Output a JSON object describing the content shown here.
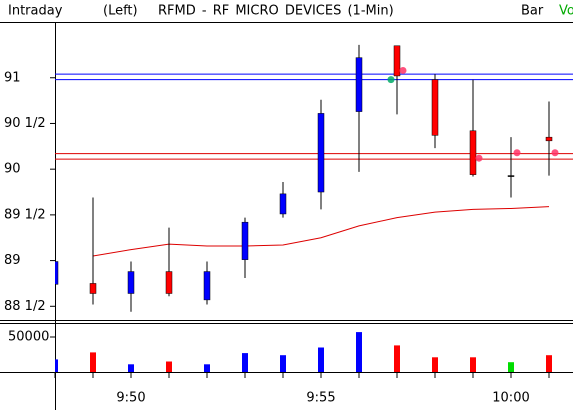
{
  "header": {
    "mode": "Intraday",
    "side": "(Left)",
    "title": "RFMD - RF MICRO DEVICES (1-Min)",
    "style": "Bar",
    "volume_tab": "Vo"
  },
  "chart_data": {
    "type": "candlestick",
    "categories": [
      null,
      null,
      "9:50",
      null,
      null,
      null,
      null,
      "9:55",
      null,
      null,
      null,
      null,
      "10:00",
      null
    ],
    "open": [
      88.74,
      88.75,
      88.64,
      88.88,
      88.57,
      89.01,
      89.51,
      89.75,
      90.63,
      91.35,
      90.98,
      90.42,
      89.93,
      90.35
    ],
    "high": [
      89.29,
      89.69,
      88.99,
      89.36,
      88.99,
      89.47,
      89.86,
      90.76,
      91.36,
      91.35,
      91.04,
      90.98,
      90.35,
      90.74
    ],
    "low": [
      88.68,
      88.52,
      88.44,
      88.61,
      88.52,
      88.81,
      89.47,
      89.56,
      89.97,
      90.6,
      90.23,
      89.92,
      89.69,
      89.93
    ],
    "close": [
      88.99,
      88.64,
      88.88,
      88.64,
      88.88,
      89.42,
      89.73,
      90.61,
      91.22,
      91.02,
      90.37,
      89.94,
      89.93,
      90.31
    ],
    "up_color": "#0000ff",
    "down_color": "#ff0000",
    "flat_color": "#000000",
    "ylim": [
      88.35,
      91.61
    ],
    "yticks": [
      {
        "value": 88.5,
        "label": "88 1/2"
      },
      89,
      {
        "value": 89.5,
        "label": "89 1/2"
      },
      90,
      {
        "value": 90.5,
        "label": "90 1/2"
      },
      91
    ],
    "levels": [
      {
        "value": 91.04,
        "color": "#0000ff"
      },
      {
        "value": 90.98,
        "color": "#0000ff"
      },
      {
        "value": 90.17,
        "color": "#dd0000"
      },
      {
        "value": 90.11,
        "color": "#dd0000"
      }
    ],
    "moving_average": {
      "color": "#dd0000",
      "values": [
        null,
        89.05,
        89.12,
        89.18,
        89.16,
        89.16,
        89.17,
        89.25,
        89.38,
        89.47,
        89.53,
        89.56,
        89.57,
        89.59
      ]
    },
    "signals": [
      {
        "index": 9,
        "value": 90.98,
        "color": "#00aa66"
      },
      {
        "index": 9,
        "value": 91.08,
        "color": "#ff3366"
      },
      {
        "index": 11,
        "value": 90.12,
        "color": "#ff3366"
      },
      {
        "index": 12,
        "value": 90.18,
        "color": "#ff3366"
      },
      {
        "index": 13,
        "value": 90.18,
        "color": "#ff3366"
      }
    ],
    "volume": {
      "values": [
        18000,
        28000,
        11000,
        15000,
        11000,
        27000,
        24000,
        35000,
        57000,
        38000,
        21000,
        21000,
        14000,
        24000
      ],
      "colors": [
        "#0000ff",
        "#ff0000",
        "#0000ff",
        "#ff0000",
        "#0000ff",
        "#0000ff",
        "#0000ff",
        "#0000ff",
        "#0000ff",
        "#ff0000",
        "#ff0000",
        "#ff0000",
        "#00dd00",
        "#ff0000"
      ],
      "ylim": [
        0,
        70000
      ],
      "yticks": [
        50000
      ]
    }
  }
}
